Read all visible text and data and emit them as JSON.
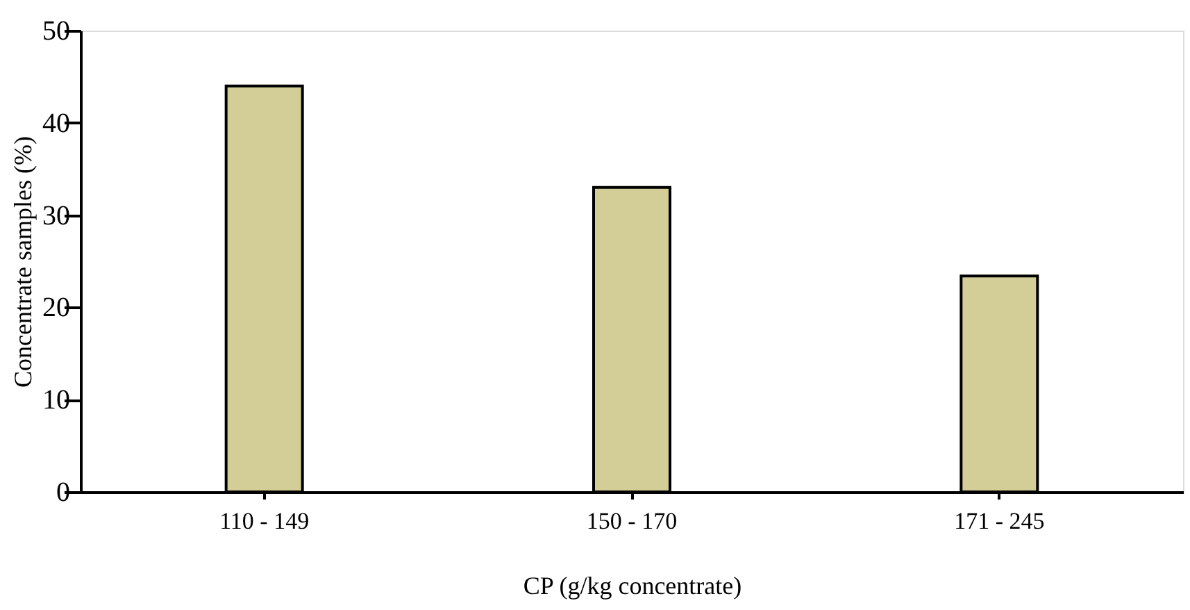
{
  "chart_data": {
    "type": "bar",
    "xlabel": "CP (g/kg concentrate)",
    "ylabel": "Concentrate samples (%)",
    "categories": [
      "110 - 149",
      "150 - 170",
      "171 - 245"
    ],
    "values": [
      44,
      33,
      23.4
    ],
    "color": "#d3cd98",
    "ylim": [
      0,
      50
    ],
    "yticks": [
      0,
      10,
      20,
      30,
      40,
      50
    ],
    "grid": false
  }
}
